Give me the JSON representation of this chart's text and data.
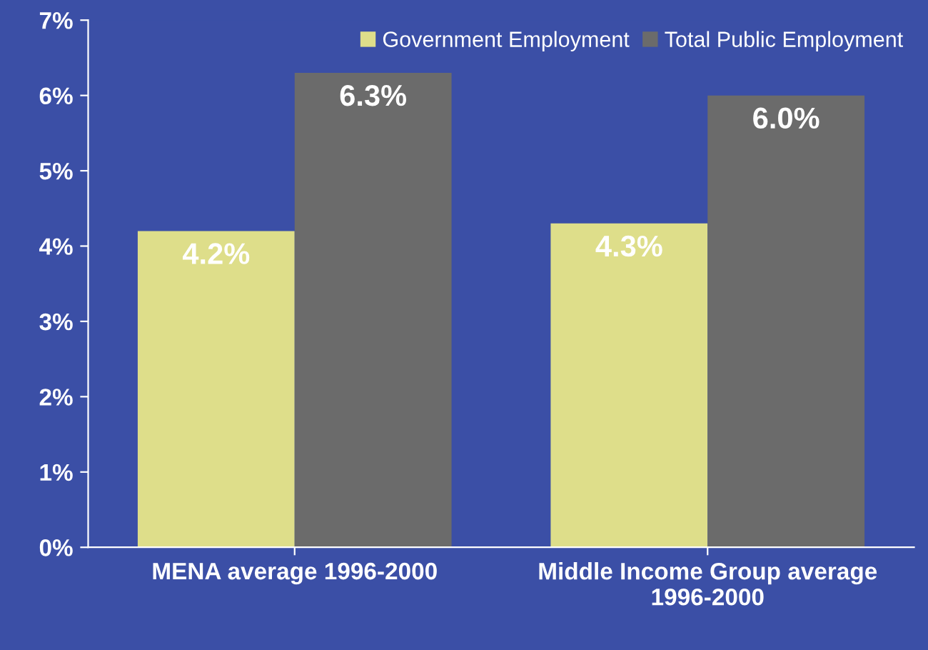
{
  "chart_data": {
    "type": "bar",
    "categories": [
      "MENA average 1996-2000",
      "Middle Income Group average\n1996-2000"
    ],
    "series": [
      {
        "name": "Government Employment",
        "color": "#dede8a",
        "values": [
          4.2,
          4.3
        ],
        "value_labels": [
          "4.2%",
          "4.3%"
        ]
      },
      {
        "name": "Total Public Employment",
        "color": "#6b6b6b",
        "values": [
          6.3,
          6.0
        ],
        "value_labels": [
          "6.3%",
          "6.0%"
        ]
      }
    ],
    "ylim": [
      0,
      7
    ],
    "yticks": [
      {
        "value": 0,
        "label": "0%"
      },
      {
        "value": 1,
        "label": "1%"
      },
      {
        "value": 2,
        "label": "2%"
      },
      {
        "value": 3,
        "label": "3%"
      },
      {
        "value": 4,
        "label": "4%"
      },
      {
        "value": 5,
        "label": "5%"
      },
      {
        "value": 6,
        "label": "6%"
      },
      {
        "value": 7,
        "label": "7%"
      }
    ],
    "legend": "top right",
    "grid": false
  }
}
